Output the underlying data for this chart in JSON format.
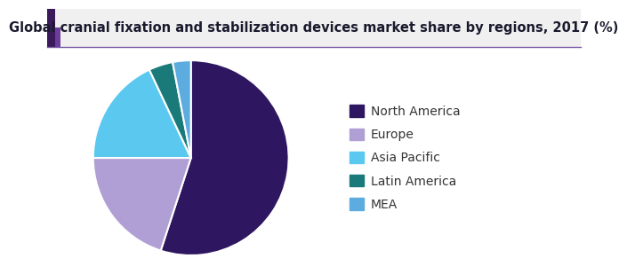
{
  "title": "Global cranial fixation and stabilization devices market share by regions, 2017 (%)",
  "labels": [
    "North America",
    "Europe",
    "Asia Pacific",
    "Latin America",
    "MEA"
  ],
  "values": [
    55,
    20,
    18,
    4,
    3
  ],
  "colors": [
    "#2E1760",
    "#B09FD4",
    "#5BC8F0",
    "#1A7A7A",
    "#5DACE0"
  ],
  "startangle": 90,
  "title_fontsize": 10.5,
  "legend_fontsize": 10,
  "background_color": "#ffffff",
  "title_color": "#1a1a2e",
  "wedge_linewidth": 1.5,
  "wedge_edgecolor": "#ffffff",
  "header_bg": "#f0f0f0",
  "header_accent1": "#6a3d9a",
  "header_accent2": "#3a1a5a",
  "header_line_color": "#7b5ea7"
}
